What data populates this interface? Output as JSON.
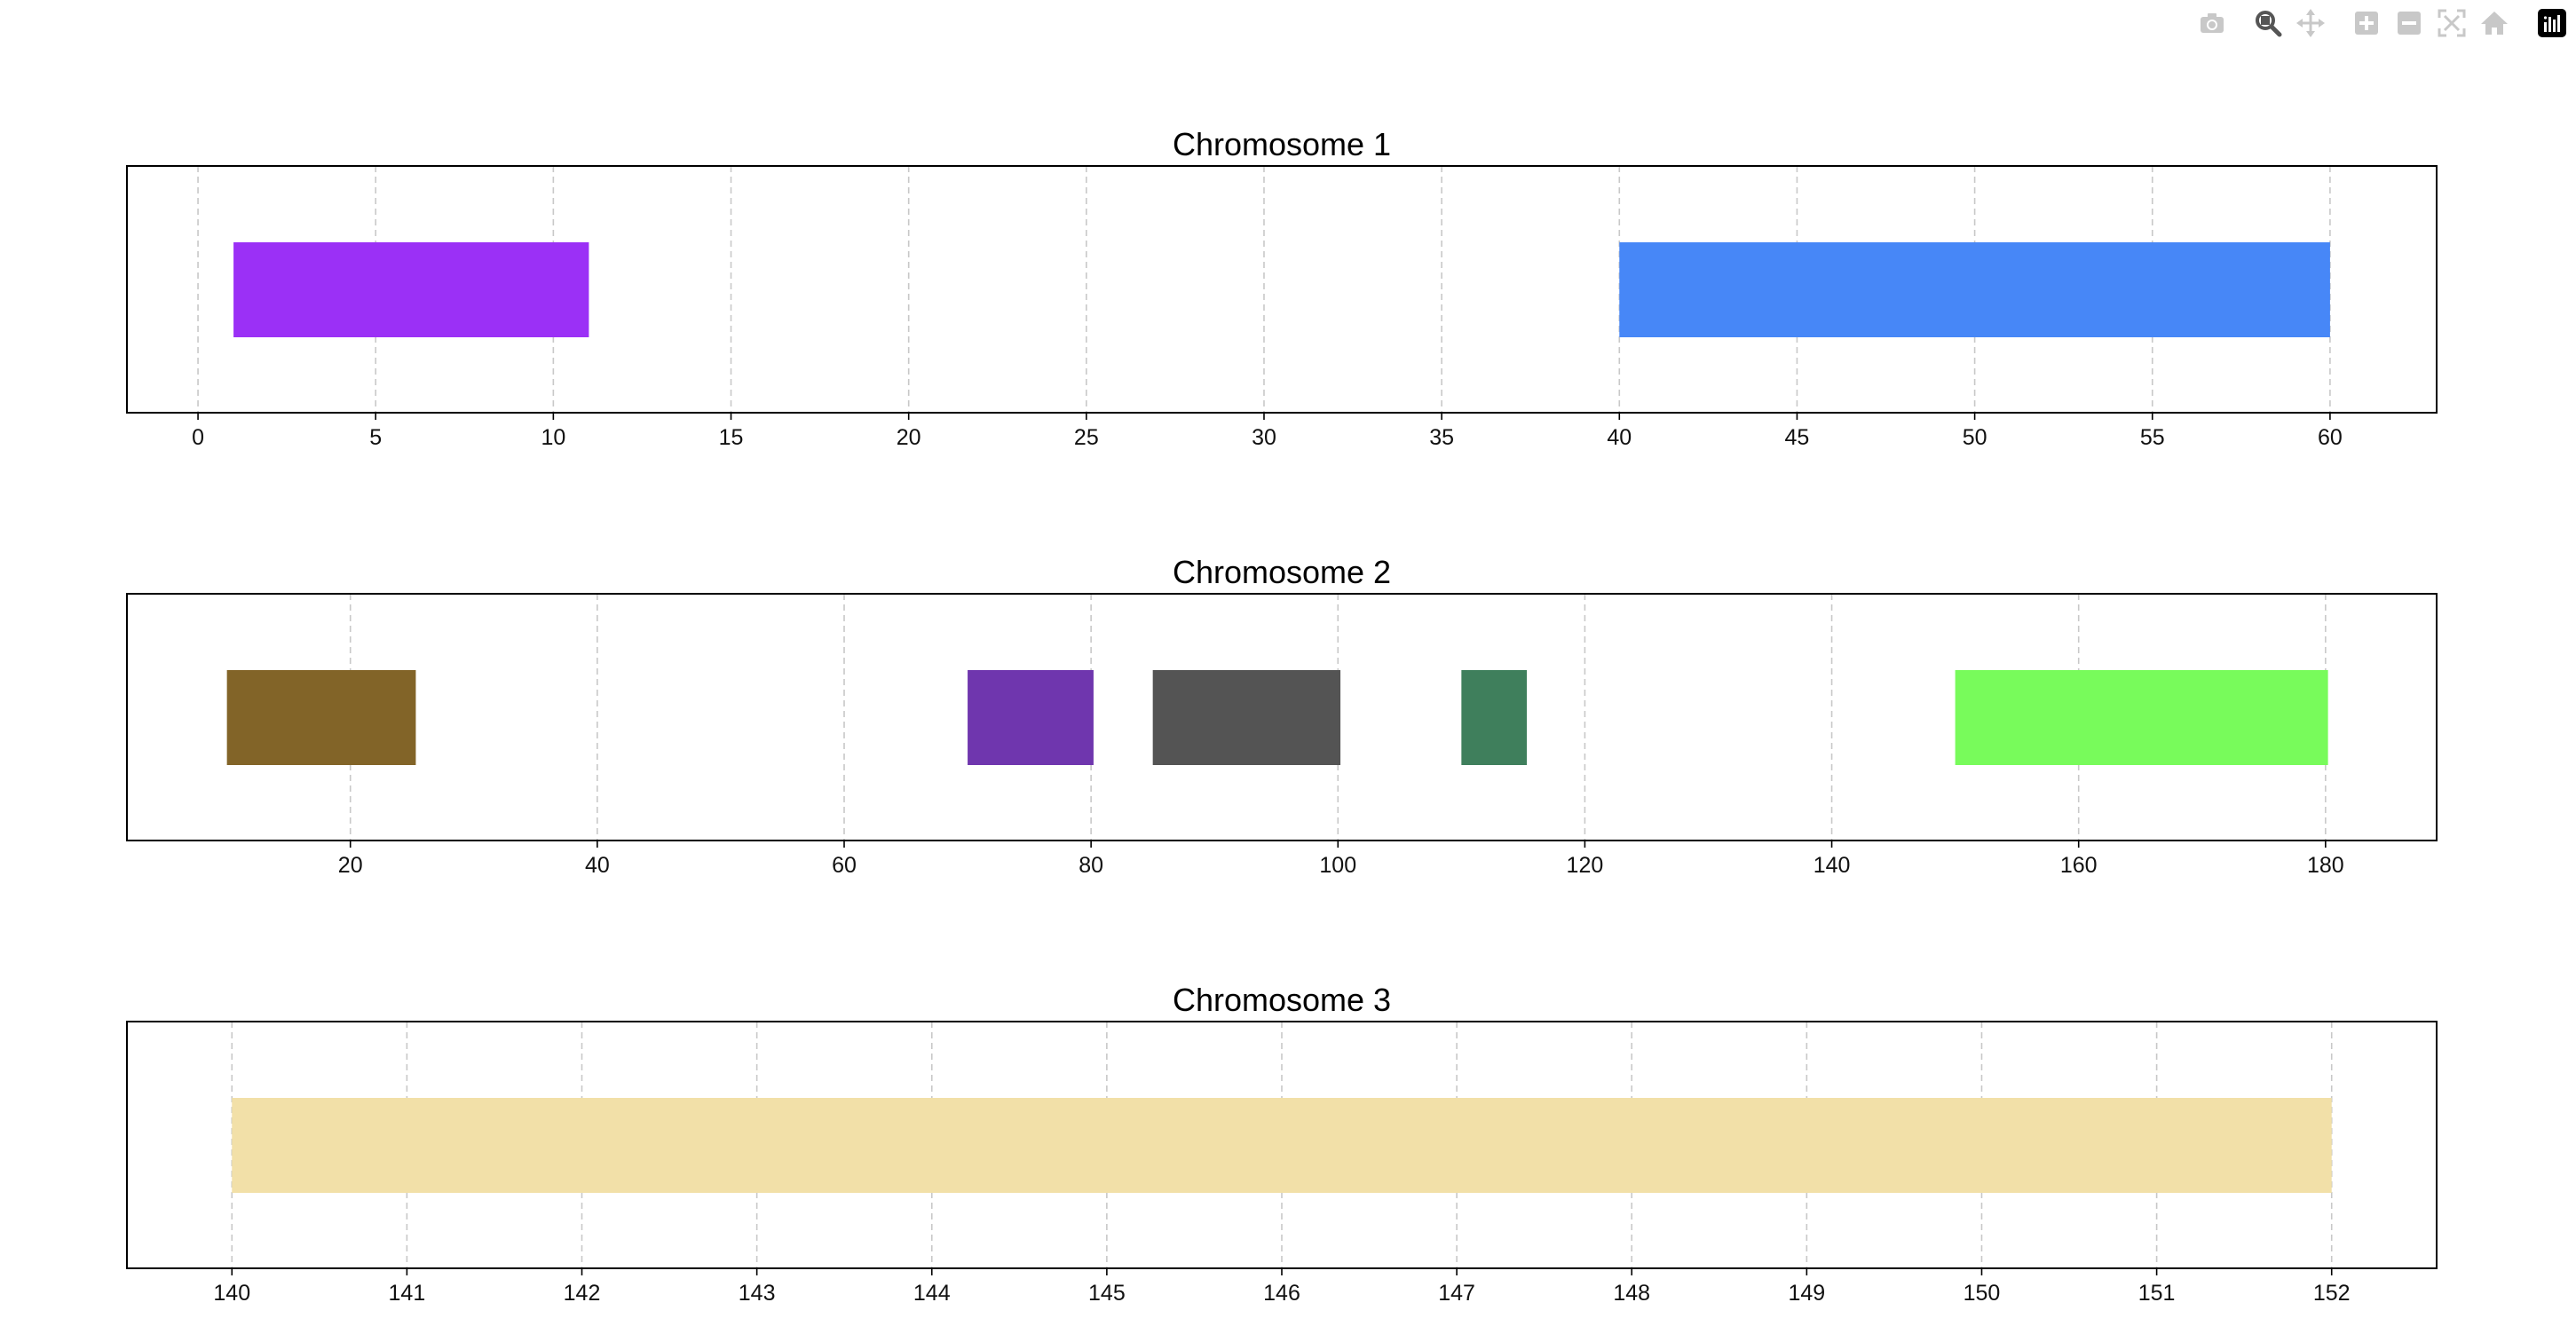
{
  "toolbar": {
    "buttons": [
      {
        "name": "camera-icon",
        "color": "#c8c8c8"
      },
      {
        "name": "zoom-icon",
        "color": "#555555"
      },
      {
        "name": "pan-icon",
        "color": "#c8c8c8"
      },
      {
        "name": "zoom-in-icon",
        "color": "#c8c8c8"
      },
      {
        "name": "zoom-out-icon",
        "color": "#c8c8c8"
      },
      {
        "name": "autoscale-icon",
        "color": "#c8c8c8"
      },
      {
        "name": "home-icon",
        "color": "#c8c8c8"
      },
      {
        "name": "plotly-logo-icon",
        "color": "#000000"
      }
    ]
  },
  "chart_data": [
    {
      "type": "bar",
      "orientation": "horizontal-ranges",
      "title": "Chromosome 1",
      "xlim": [
        -2,
        63
      ],
      "xticks": [
        0,
        5,
        10,
        15,
        20,
        25,
        30,
        35,
        40,
        45,
        50,
        55,
        60
      ],
      "grid": "vertical-dashed",
      "segments": [
        {
          "start": 1,
          "end": 11,
          "color": "#9b30f6"
        },
        {
          "start": 40,
          "end": 60,
          "color": "#4787f7"
        }
      ]
    },
    {
      "type": "bar",
      "orientation": "horizontal-ranges",
      "title": "Chromosome 2",
      "xlim": [
        1.9,
        189
      ],
      "xticks": [
        20,
        40,
        60,
        80,
        100,
        120,
        140,
        160,
        180
      ],
      "grid": "vertical-dashed",
      "segments": [
        {
          "start": 10,
          "end": 25.3,
          "color": "#826428"
        },
        {
          "start": 70,
          "end": 80.2,
          "color": "#6f36ae"
        },
        {
          "start": 85,
          "end": 100.2,
          "color": "#545454"
        },
        {
          "start": 110,
          "end": 115.3,
          "color": "#3f7f5c"
        },
        {
          "start": 150,
          "end": 180.2,
          "color": "#78fb5b"
        }
      ]
    },
    {
      "type": "bar",
      "orientation": "horizontal-ranges",
      "title": "Chromosome 3",
      "xlim": [
        139.4,
        152.6
      ],
      "xticks": [
        140,
        141,
        142,
        143,
        144,
        145,
        146,
        147,
        148,
        149,
        150,
        151,
        152
      ],
      "grid": "vertical-dashed",
      "segments": [
        {
          "start": 140,
          "end": 152,
          "color": "#f2e0a8"
        }
      ]
    }
  ]
}
